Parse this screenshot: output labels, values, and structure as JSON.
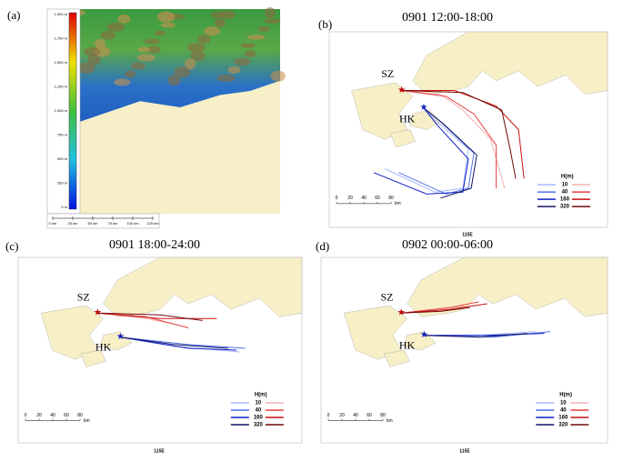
{
  "panels": [
    {
      "label": "(a)",
      "elevation_ticks": [
        "1,920 m",
        "1,750 m",
        "1,500 m",
        "1,250 m",
        "1,000 m",
        "750 m",
        "500 m",
        "250 m",
        "0 m"
      ],
      "scale_bar": [
        "0 km",
        "25 km",
        "50 km",
        "75 km",
        "100 km",
        "125 km"
      ]
    },
    {
      "label": "(b)",
      "title": "0901 12:00-18:00",
      "sites": [
        "SZ",
        "HK"
      ],
      "legend_title": "H(m)",
      "heights": [
        10,
        40,
        160,
        320
      ],
      "scale_bar": [
        "0",
        "20",
        "40",
        "60",
        "80",
        "km"
      ],
      "longitude": "115E"
    },
    {
      "label": "(c)",
      "title": "0901 18:00-24:00",
      "sites": [
        "SZ",
        "HK"
      ],
      "legend_title": "H(m)",
      "heights": [
        10,
        40,
        160,
        320
      ],
      "scale_bar": [
        "0",
        "20",
        "40",
        "60",
        "80",
        "km"
      ],
      "longitude": "115E"
    },
    {
      "label": "(d)",
      "title": "0902 00:00-06:00",
      "sites": [
        "SZ",
        "HK"
      ],
      "legend_title": "H(m)",
      "heights": [
        10,
        40,
        160,
        320
      ],
      "scale_bar": [
        "0",
        "20",
        "40",
        "60",
        "80",
        "km"
      ],
      "longitude": "115E"
    }
  ]
}
